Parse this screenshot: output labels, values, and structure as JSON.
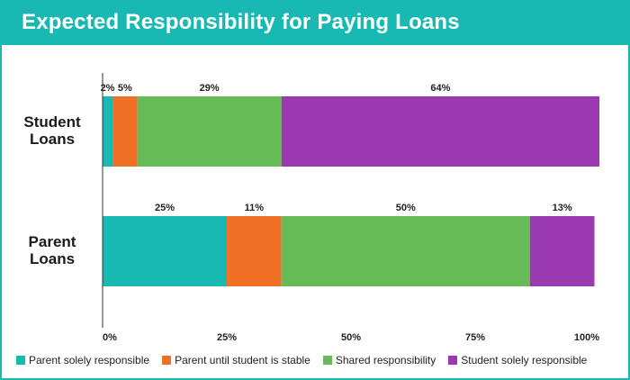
{
  "chart_data": {
    "type": "bar",
    "orientation": "horizontal",
    "stacked": true,
    "title": "Expected Responsibility for Paying Loans",
    "categories": [
      "Student\nLoans",
      "Parent\nLoans"
    ],
    "series": [
      {
        "name": "Parent solely responsible",
        "values": [
          2,
          25
        ],
        "labels": [
          "2%",
          "25%"
        ],
        "color": "#17b9b2"
      },
      {
        "name": "Parent until student is stable",
        "values": [
          5,
          11
        ],
        "labels": [
          "5%",
          "11%"
        ],
        "color": "#f07125"
      },
      {
        "name": "Shared responsibility",
        "values": [
          29,
          50
        ],
        "labels": [
          "29%",
          "50%"
        ],
        "color": "#66bb56"
      },
      {
        "name": "Student solely responsible",
        "values": [
          64,
          13
        ],
        "labels": [
          "64%",
          "13%"
        ],
        "color": "#9a39b0"
      }
    ],
    "xlim": [
      0,
      100
    ],
    "x_ticks": [
      "0%",
      "25%",
      "50%",
      "75%",
      "100%"
    ],
    "grid": false,
    "legend_position": "bottom"
  }
}
